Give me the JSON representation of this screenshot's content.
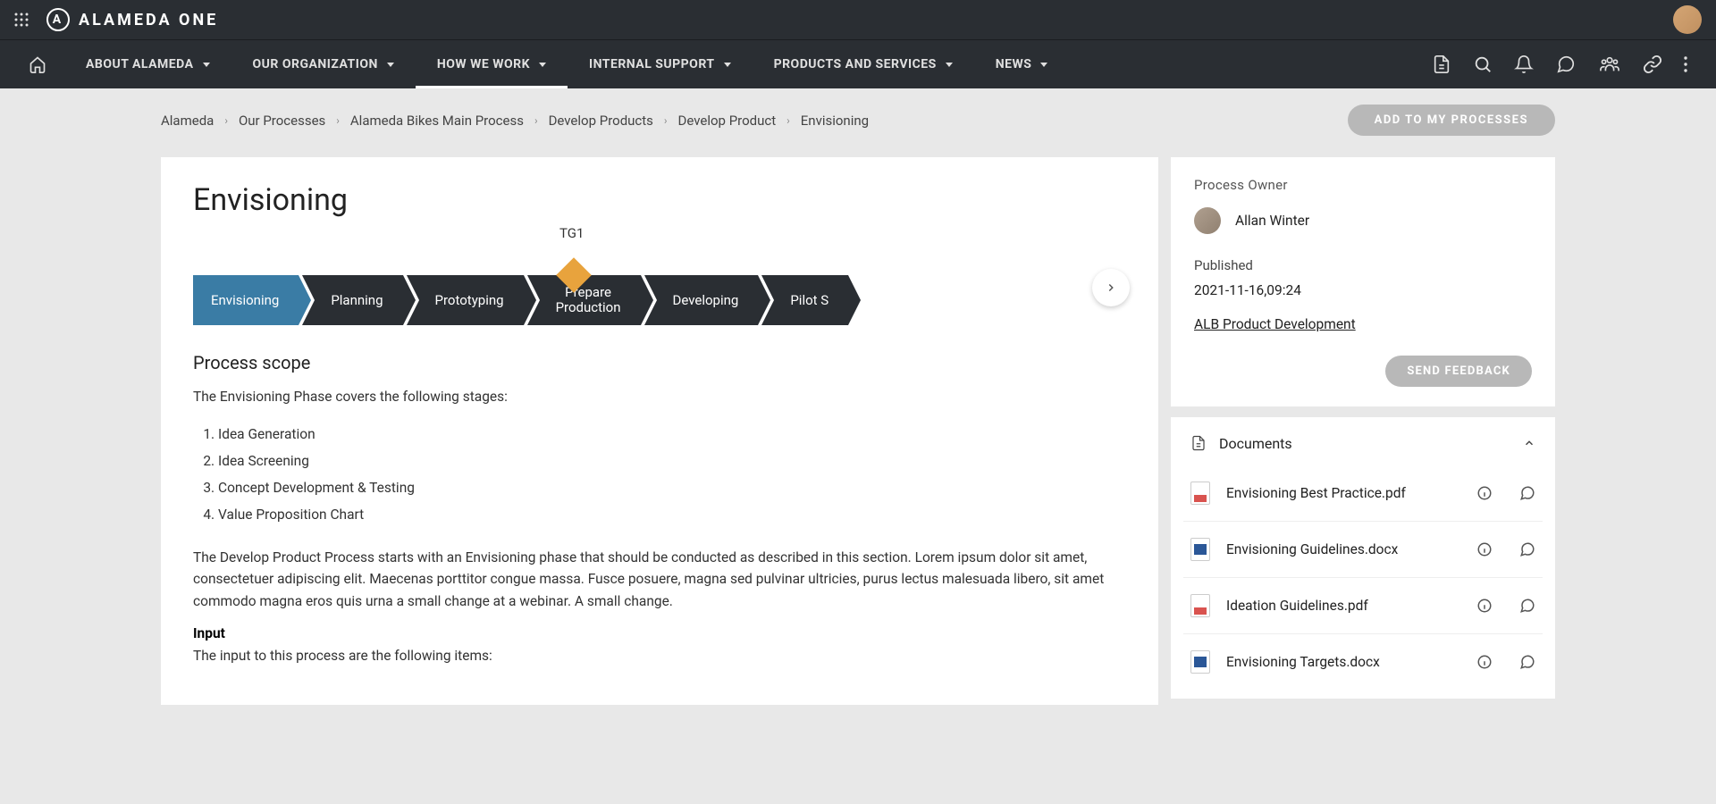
{
  "brand": "ALAMEDA ONE",
  "nav": {
    "items": [
      {
        "label": "ABOUT ALAMEDA"
      },
      {
        "label": "OUR ORGANIZATION"
      },
      {
        "label": "HOW WE WORK",
        "active": true
      },
      {
        "label": "INTERNAL SUPPORT"
      },
      {
        "label": "PRODUCTS AND SERVICES"
      },
      {
        "label": "NEWS"
      }
    ]
  },
  "breadcrumb": [
    "Alameda",
    "Our Processes",
    "Alameda Bikes Main Process",
    "Develop Products",
    "Develop Product",
    "Envisioning"
  ],
  "add_button": "ADD TO MY PROCESSES",
  "page": {
    "title": "Envisioning",
    "gate_label": "TG1",
    "gate_color": "#e8a33d",
    "chevrons": [
      {
        "label": "Envisioning",
        "active": true
      },
      {
        "label": "Planning"
      },
      {
        "label": "Prototyping"
      },
      {
        "label": "Prepare Production",
        "double": true
      },
      {
        "label": "Developing"
      },
      {
        "label": "Pilot S"
      }
    ],
    "chevron_colors": {
      "default": "#2a2e33",
      "active": "#3a7ca5"
    },
    "scope_heading": "Process scope",
    "scope_intro": "The Envisioning Phase covers the following stages:",
    "stages": [
      "Idea Generation",
      "Idea Screening",
      "Concept Development & Testing",
      "Value Proposition Chart"
    ],
    "description": "The Develop Product Process starts with an Envisioning phase that should be conducted as described in this section. Lorem ipsum dolor sit amet, consectetuer adipiscing elit. Maecenas porttitor congue massa. Fusce posuere, magna sed pulvinar ultricies, purus lectus malesuada libero, sit amet commodo magna eros quis urna a small change at a webinar. A small change.",
    "input_heading": "Input",
    "input_text": "The input to this process are the following items:"
  },
  "sidebar": {
    "owner_label": "Process Owner",
    "owner_name": "Allan Winter",
    "published_label": "Published",
    "published_date": "2021-11-16,09:24",
    "link_text": "ALB Product Development",
    "feedback_button": "SEND FEEDBACK",
    "documents_label": "Documents",
    "documents": [
      {
        "name": "Envisioning Best Practice.pdf",
        "type": "pdf"
      },
      {
        "name": "Envisioning Guidelines.docx",
        "type": "docx"
      },
      {
        "name": "Ideation Guidelines.pdf",
        "type": "pdf"
      },
      {
        "name": "Envisioning Targets.docx",
        "type": "docx"
      }
    ]
  }
}
